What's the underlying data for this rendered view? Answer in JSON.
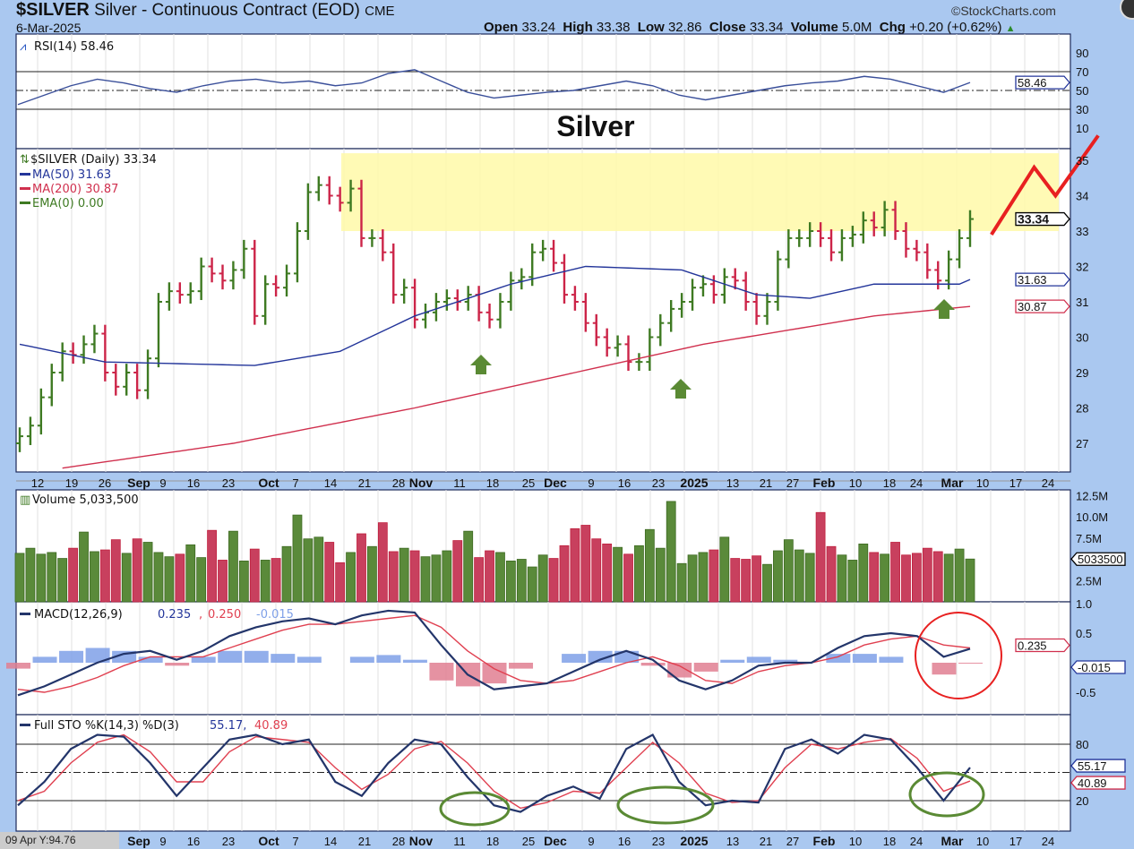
{
  "header": {
    "symbol": "$SILVER",
    "name": "Silver - Continuous Contract (EOD)",
    "exchange": "CME",
    "date": "6-Mar-2025",
    "credit": "©StockCharts.com",
    "open_label": "Open",
    "open": "33.24",
    "high_label": "High",
    "high": "33.38",
    "low_label": "Low",
    "low": "32.86",
    "close_label": "Close",
    "close": "33.34",
    "volume_label": "Volume",
    "volume": "5.0M",
    "chg_label": "Chg",
    "chg": "+0.20 (+0.62%)"
  },
  "readout": "09 Apr Y:94.76",
  "annotation_title": "Silver",
  "colors": {
    "up": "#3e7a22",
    "down": "#cc2448",
    "ma50": "#23359a",
    "ma200": "#d0304e",
    "highlight": "#fff9a8",
    "annot_red": "#e82020",
    "annot_green": "#5a8a34",
    "bg": "#aac8f0"
  },
  "chart_data": [
    {
      "type": "line",
      "panel": "rsi",
      "title": "RSI(14) 58.46",
      "last_value": "58.46",
      "yticks": [
        "90",
        "70",
        "50",
        "30",
        "10"
      ],
      "ylim": [
        0,
        100
      ],
      "values": [
        35,
        45,
        55,
        62,
        58,
        52,
        48,
        55,
        60,
        62,
        58,
        60,
        55,
        58,
        68,
        72,
        60,
        48,
        42,
        45,
        48,
        50,
        55,
        60,
        55,
        45,
        40,
        45,
        50,
        55,
        58,
        60,
        65,
        62,
        55,
        48,
        58.46
      ]
    },
    {
      "type": "ohlc",
      "panel": "price",
      "title": "$SILVER (Daily) 33.34",
      "legend": [
        "MA(50) 31.63",
        "MA(200) 30.87",
        "EMA(0) 0.00"
      ],
      "ylim": [
        26.2,
        35.4
      ],
      "yticks": [
        "35",
        "34",
        "33",
        "32",
        "31",
        "30",
        "29",
        "28",
        "27"
      ],
      "last_labels": {
        "close": "33.34",
        "ma50": "31.63",
        "ma200": "30.87"
      },
      "close": [
        27.2,
        27.5,
        28.3,
        29.0,
        29.6,
        29.5,
        29.8,
        30.1,
        29.0,
        28.6,
        29.0,
        28.5,
        29.4,
        31.0,
        31.3,
        31.2,
        31.3,
        32.0,
        31.8,
        31.6,
        31.9,
        32.5,
        30.6,
        31.5,
        31.4,
        31.8,
        33.0,
        34.1,
        34.3,
        34.0,
        33.8,
        34.2,
        32.8,
        32.8,
        32.4,
        31.2,
        31.4,
        30.5,
        30.7,
        31.0,
        31.1,
        31.0,
        31.2,
        30.7,
        30.5,
        31.0,
        31.6,
        31.7,
        32.4,
        32.5,
        32.1,
        31.2,
        31.0,
        30.4,
        30.0,
        29.7,
        29.8,
        29.3,
        29.3,
        30.0,
        30.4,
        30.8,
        31.0,
        31.4,
        31.5,
        31.2,
        31.7,
        31.6,
        31.0,
        30.6,
        31.0,
        32.2,
        32.8,
        32.8,
        33.0,
        32.8,
        32.4,
        32.8,
        32.9,
        33.3,
        33.1,
        33.6,
        33.0,
        32.5,
        32.4,
        31.9,
        31.6,
        32.2,
        32.8,
        33.34
      ],
      "ma50": [
        [
          0,
          29.8
        ],
        [
          8,
          29.3
        ],
        [
          22,
          29.2
        ],
        [
          30,
          29.6
        ],
        [
          37,
          30.6
        ],
        [
          46,
          31.5
        ],
        [
          53,
          32.0
        ],
        [
          62,
          31.9
        ],
        [
          69,
          31.2
        ],
        [
          74,
          31.1
        ],
        [
          80,
          31.5
        ],
        [
          88,
          31.5
        ],
        [
          89,
          31.63
        ]
      ],
      "ma200": [
        [
          4,
          26.3
        ],
        [
          20,
          27.0
        ],
        [
          37,
          28.0
        ],
        [
          46,
          28.6
        ],
        [
          55,
          29.2
        ],
        [
          64,
          29.8
        ],
        [
          72,
          30.2
        ],
        [
          80,
          30.6
        ],
        [
          89,
          30.87
        ]
      ],
      "highlight_zone": [
        33.0,
        35.2
      ],
      "projection": [
        [
          91,
          32.9
        ],
        [
          95,
          34.8
        ],
        [
          97,
          34.0
        ],
        [
          101,
          35.7
        ]
      ]
    },
    {
      "type": "bar",
      "panel": "volume",
      "title": "Volume 5,033,500",
      "last_label": "5033500",
      "yticks": [
        "12.5M",
        "10.0M",
        "7.5M",
        "2.5M"
      ],
      "ylim": [
        0,
        13
      ],
      "values_m": [
        5.7,
        6.3,
        5.6,
        5.8,
        5.1,
        6.3,
        8.2,
        5.9,
        6.1,
        7.3,
        5.7,
        7.4,
        7.0,
        5.8,
        5.3,
        5.6,
        6.7,
        5.2,
        8.4,
        4.9,
        8.3,
        4.8,
        6.2,
        4.9,
        5.1,
        6.5,
        10.2,
        7.4,
        7.6,
        7.0,
        4.6,
        5.8,
        8.0,
        6.5,
        9.3,
        5.9,
        6.3,
        6.0,
        5.3,
        5.5,
        6.0,
        7.2,
        8.3,
        5.2,
        6.0,
        5.8,
        4.8,
        5.0,
        4.1,
        5.5,
        5.1,
        6.6,
        8.6,
        9.0,
        7.4,
        6.8,
        6.4,
        5.6,
        6.6,
        8.5,
        6.3,
        11.8,
        4.5,
        5.5,
        5.8,
        6.1,
        7.6,
        5.1,
        5.0,
        5.4,
        4.4,
        6.0,
        7.3,
        6.1,
        5.7,
        10.5,
        6.5,
        5.5,
        4.9,
        6.8,
        5.8,
        5.6,
        7.0,
        5.5,
        5.7,
        6.3,
        5.9,
        5.6,
        6.2,
        5.03
      ]
    },
    {
      "type": "line",
      "panel": "macd",
      "title": "MACD(12,26,9)",
      "values_text": {
        "macd": "0.235",
        "signal": "0.250",
        "hist": "-0.015"
      },
      "yticks": [
        "1.0",
        "0.5",
        "-0.5"
      ],
      "ylim": [
        -1.0,
        1.1
      ],
      "macd": [
        -0.55,
        -0.4,
        -0.2,
        0.0,
        0.15,
        0.2,
        0.05,
        0.2,
        0.45,
        0.6,
        0.7,
        0.75,
        0.65,
        0.8,
        0.88,
        0.85,
        0.3,
        -0.2,
        -0.45,
        -0.4,
        -0.35,
        -0.15,
        0.05,
        0.2,
        0.05,
        -0.3,
        -0.45,
        -0.3,
        -0.05,
        0.0,
        0.0,
        0.25,
        0.45,
        0.5,
        0.45,
        0.1,
        0.235
      ],
      "signal": [
        -0.45,
        -0.5,
        -0.4,
        -0.25,
        -0.05,
        0.1,
        0.1,
        0.1,
        0.25,
        0.4,
        0.55,
        0.65,
        0.65,
        0.7,
        0.75,
        0.8,
        0.6,
        0.2,
        -0.1,
        -0.3,
        -0.35,
        -0.3,
        -0.15,
        0.0,
        0.1,
        -0.05,
        -0.3,
        -0.35,
        -0.15,
        -0.05,
        0.0,
        0.1,
        0.3,
        0.4,
        0.45,
        0.3,
        0.25
      ]
    },
    {
      "type": "line",
      "panel": "stochastic",
      "title": "Full STO %K(14,3) %D(3)",
      "values_text": {
        "k": "55.17",
        "d": "40.89"
      },
      "yticks": [
        "80",
        "20"
      ],
      "ylim": [
        0,
        100
      ],
      "k": [
        15,
        40,
        75,
        90,
        88,
        60,
        25,
        55,
        85,
        90,
        80,
        85,
        40,
        25,
        60,
        85,
        80,
        45,
        15,
        8,
        25,
        35,
        22,
        75,
        90,
        40,
        15,
        20,
        18,
        75,
        85,
        70,
        90,
        85,
        55,
        20,
        55.17
      ],
      "d": [
        20,
        30,
        60,
        82,
        90,
        72,
        40,
        40,
        72,
        88,
        85,
        82,
        55,
        32,
        48,
        75,
        83,
        60,
        30,
        12,
        18,
        30,
        28,
        55,
        82,
        60,
        28,
        18,
        20,
        55,
        80,
        75,
        82,
        86,
        65,
        30,
        40.89
      ]
    }
  ],
  "xaxis": {
    "labels": [
      "12",
      "19",
      "26",
      "Sep",
      "9",
      "16",
      "23",
      "Oct",
      "7",
      "14",
      "21",
      "28",
      "Nov",
      "11",
      "18",
      "25",
      "Dec",
      "9",
      "16",
      "23",
      "2025",
      "13",
      "21",
      "27",
      "Feb",
      "10",
      "18",
      "24",
      "Mar",
      "10",
      "17",
      "24"
    ],
    "bold": [
      "Sep",
      "Oct",
      "Nov",
      "Dec",
      "2025",
      "Feb",
      "Mar"
    ],
    "bottom_labels": [
      "Sep",
      "9",
      "16",
      "23",
      "Oct",
      "7",
      "14",
      "21",
      "28",
      "Nov",
      "11",
      "18",
      "25",
      "Dec",
      "9",
      "16",
      "23",
      "2025",
      "13",
      "21",
      "27",
      "Feb",
      "10",
      "18",
      "24",
      "Mar",
      "10",
      "17",
      "24"
    ]
  }
}
